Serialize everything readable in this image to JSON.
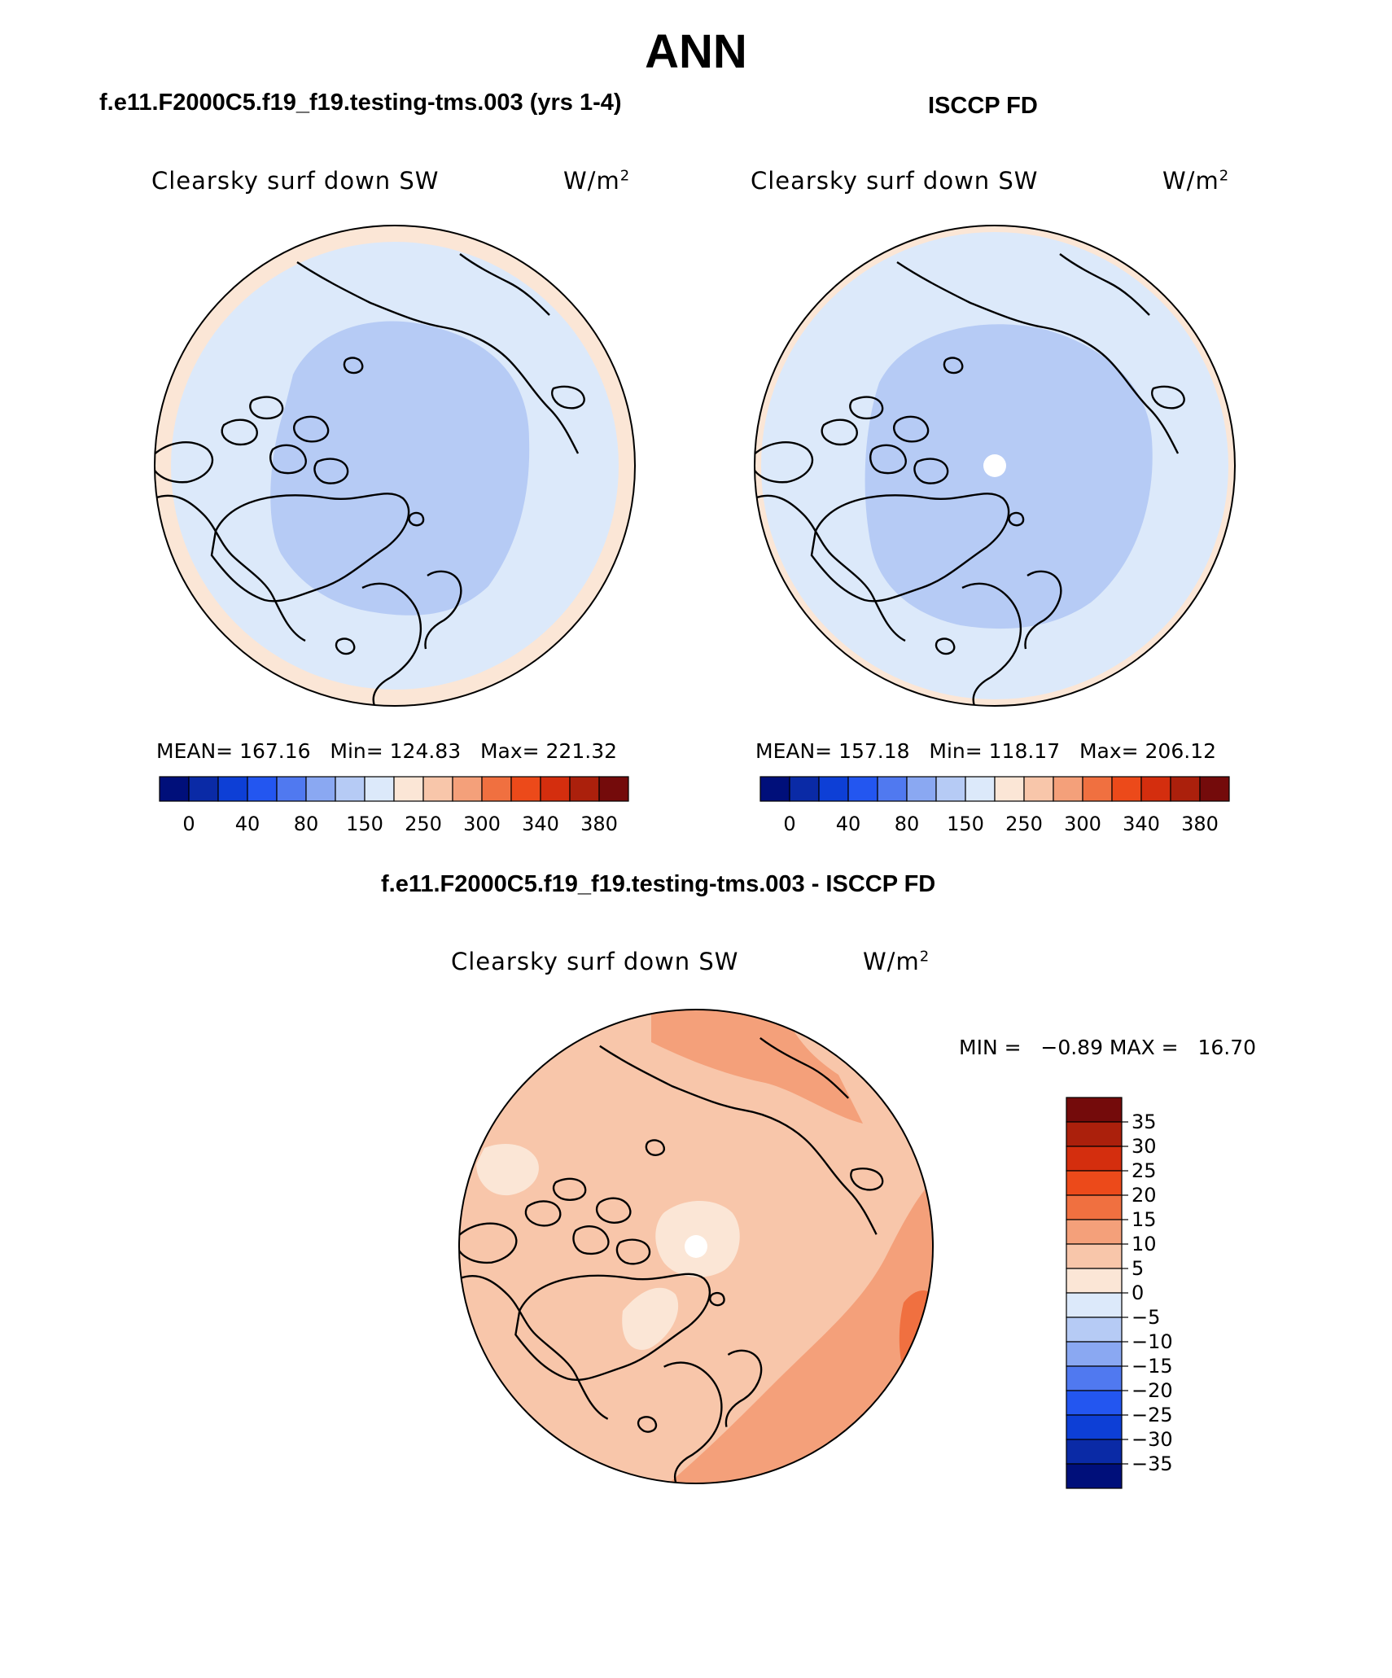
{
  "title": "ANN",
  "panels": [
    {
      "case_title": "f.e11.F2000C5.f19_f19.testing-tms.003 (yrs 1-4)",
      "variable": "Clearsky surf down SW",
      "units_base": "W/m",
      "units_exp": "2",
      "stats_text": "MEAN= 167.16   Min= 124.83   Max= 221.32",
      "colorbar_ticks": [
        "0",
        "40",
        "80",
        "150",
        "250",
        "300",
        "340",
        "380"
      ]
    },
    {
      "case_title": "ISCCP FD",
      "variable": "Clearsky surf down SW",
      "units_base": "W/m",
      "units_exp": "2",
      "stats_text": "MEAN= 157.18   Min= 118.17   Max= 206.12",
      "colorbar_ticks": [
        "0",
        "40",
        "80",
        "150",
        "250",
        "300",
        "340",
        "380"
      ]
    },
    {
      "case_title": "f.e11.F2000C5.f19_f19.testing-tms.003 - ISCCP FD",
      "variable": "Clearsky surf down SW",
      "units_base": "W/m",
      "units_exp": "2",
      "stats_text": "MIN =   −0.89 MAX =   16.70",
      "colorbar_ticks": [
        "35",
        "30",
        "25",
        "20",
        "15",
        "10",
        "5",
        "0",
        "−5",
        "−10",
        "−15",
        "−20",
        "−25",
        "−30",
        "−35"
      ]
    }
  ],
  "colors": {
    "field_scale": [
      "#000f7a",
      "#0a2aa6",
      "#0d3fd6",
      "#2356f0",
      "#5079f0",
      "#8aa8f2",
      "#b6cbf5",
      "#dce9fa",
      "#fbe6d6",
      "#f8c6aa",
      "#f4a07a",
      "#f07040",
      "#ec4a1a",
      "#d42e0e",
      "#ab200c",
      "#740b0b"
    ],
    "diff_scale": [
      "#000f7a",
      "#0a2aa6",
      "#0d3fd6",
      "#2356f0",
      "#5079f0",
      "#8aa8f2",
      "#b6cbf5",
      "#dce9fa",
      "#fbe6d6",
      "#f8c6aa",
      "#f4a07a",
      "#f07040",
      "#ec4a1a",
      "#d42e0e",
      "#ab200c",
      "#740b0b"
    ],
    "ocean_mid": "#dce9fa",
    "inner_low": "#b6cbf5",
    "rim": "#fbe6d6",
    "diff_base": "#f8c6aa",
    "diff_high": "#f4a07a",
    "diff_max": "#f07040",
    "diff_low": "#fbe6d6",
    "coast": "#000000"
  }
}
